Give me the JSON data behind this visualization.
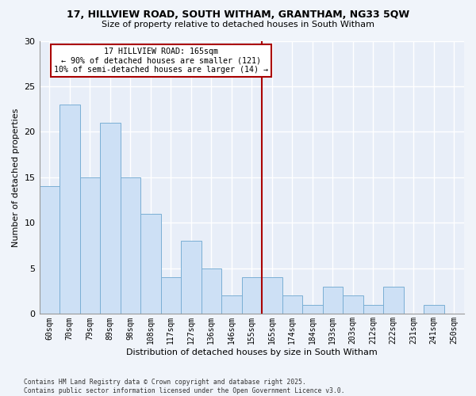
{
  "title1": "17, HILLVIEW ROAD, SOUTH WITHAM, GRANTHAM, NG33 5QW",
  "title2": "Size of property relative to detached houses in South Witham",
  "xlabel": "Distribution of detached houses by size in South Witham",
  "ylabel": "Number of detached properties",
  "bar_labels": [
    "60sqm",
    "70sqm",
    "79sqm",
    "89sqm",
    "98sqm",
    "108sqm",
    "117sqm",
    "127sqm",
    "136sqm",
    "146sqm",
    "155sqm",
    "165sqm",
    "174sqm",
    "184sqm",
    "193sqm",
    "203sqm",
    "212sqm",
    "222sqm",
    "231sqm",
    "241sqm",
    "250sqm"
  ],
  "bar_values": [
    14,
    23,
    15,
    21,
    15,
    11,
    4,
    8,
    5,
    2,
    4,
    4,
    2,
    1,
    3,
    2,
    1,
    3,
    0,
    1,
    0
  ],
  "bar_color": "#cde0f5",
  "bar_edgecolor": "#7bafd4",
  "ylim": [
    0,
    30
  ],
  "yticks": [
    0,
    5,
    10,
    15,
    20,
    25,
    30
  ],
  "annotation_title": "17 HILLVIEW ROAD: 165sqm",
  "annotation_line1": "← 90% of detached houses are smaller (121)",
  "annotation_line2": "10% of semi-detached houses are larger (14) →",
  "footer1": "Contains HM Land Registry data © Crown copyright and database right 2025.",
  "footer2": "Contains public sector information licensed under the Open Government Licence v3.0.",
  "bg_color": "#f0f4fa",
  "plot_bg_color": "#e8eef8",
  "grid_color": "#ffffff",
  "ref_line_color": "#aa0000",
  "ref_line_index": 11
}
